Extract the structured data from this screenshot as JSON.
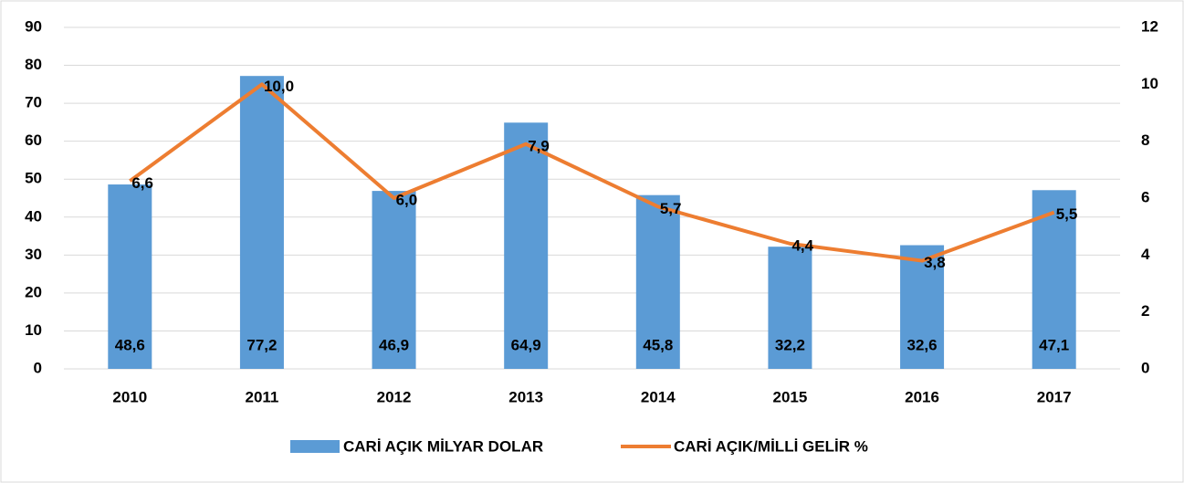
{
  "chart_data": {
    "type": "combo",
    "categories": [
      "2010",
      "2011",
      "2012",
      "2013",
      "2014",
      "2015",
      "2016",
      "2017"
    ],
    "series": [
      {
        "name": "CARİ AÇIK MİLYAR DOLAR",
        "type": "bar",
        "color": "#5b9bd5",
        "values": [
          48.6,
          77.2,
          46.9,
          64.9,
          45.8,
          32.2,
          32.6,
          47.1
        ],
        "value_labels": [
          "48,6",
          "77,2",
          "46,9",
          "64,9",
          "45,8",
          "32,2",
          "32,6",
          "47,1"
        ]
      },
      {
        "name": "CARİ AÇIK/MİLLİ GELİR %",
        "type": "line",
        "axis": "y2",
        "color": "#ed7d31",
        "values": [
          6.6,
          10.0,
          6.0,
          7.9,
          5.7,
          4.4,
          3.8,
          5.5
        ],
        "value_labels": [
          "6,6",
          "10,0",
          "6,0",
          "7,9",
          "5,7",
          "4,4",
          "3,8",
          "5,5"
        ]
      }
    ],
    "ylim": [
      0,
      90
    ],
    "yticks": [
      0,
      10,
      20,
      30,
      40,
      50,
      60,
      70,
      80,
      90
    ],
    "y2lim": [
      0,
      12
    ],
    "y2ticks": [
      0,
      2,
      4,
      6,
      8,
      10,
      12
    ],
    "grid": true,
    "legend": "bottom"
  }
}
